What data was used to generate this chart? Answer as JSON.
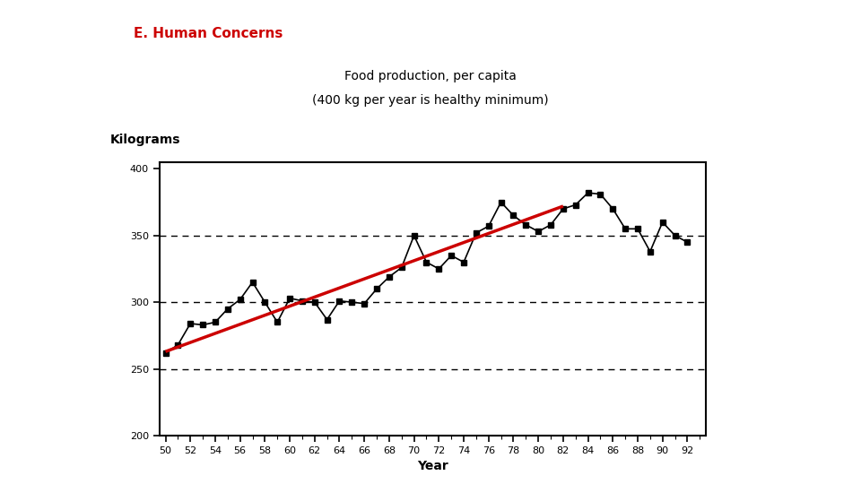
{
  "title_section": "E. Human Concerns",
  "subtitle_line1": "Food production, per capita",
  "subtitle_line2": "(400 kg per year is healthy minimum)",
  "ylabel": "Kilograms",
  "xlabel": "Year",
  "years": [
    50,
    51,
    52,
    53,
    54,
    55,
    56,
    57,
    58,
    59,
    60,
    61,
    62,
    63,
    64,
    65,
    66,
    67,
    68,
    69,
    70,
    71,
    72,
    73,
    74,
    75,
    76,
    77,
    78,
    79,
    80,
    81,
    82,
    83,
    84,
    85,
    86,
    87,
    88,
    89,
    90,
    91,
    92
  ],
  "values": [
    262,
    268,
    284,
    283,
    285,
    295,
    302,
    315,
    300,
    285,
    303,
    301,
    300,
    287,
    301,
    300,
    299,
    310,
    319,
    326,
    350,
    330,
    325,
    335,
    330,
    352,
    357,
    375,
    365,
    358,
    353,
    358,
    370,
    373,
    382,
    381,
    370,
    355,
    355,
    338,
    360,
    350,
    345
  ],
  "trend_x": [
    50,
    82
  ],
  "trend_y": [
    263,
    372
  ],
  "dashed_lines": [
    250,
    300,
    350
  ],
  "xlim": [
    49.5,
    93.5
  ],
  "ylim": [
    200,
    405
  ],
  "yticks": [
    200,
    250,
    300,
    350,
    400
  ],
  "xtick_labels": [
    "50",
    "52",
    "54",
    "56",
    "58",
    "60",
    "62",
    "64",
    "66",
    "68",
    "70",
    "72",
    "74",
    "76",
    "78",
    "80",
    "82",
    "84",
    "86",
    "88",
    "90",
    "92"
  ],
  "xtick_positions": [
    50,
    52,
    54,
    56,
    58,
    60,
    62,
    64,
    66,
    68,
    70,
    72,
    74,
    76,
    78,
    80,
    82,
    84,
    86,
    88,
    90,
    92
  ],
  "title_color": "#cc0000",
  "trend_color": "#cc0000",
  "line_color": "#000000",
  "marker_color": "#000000",
  "bg_color": "#ffffff",
  "title_fontsize": 11,
  "subtitle_fontsize": 10,
  "axis_label_fontsize": 10,
  "tick_fontsize": 8
}
